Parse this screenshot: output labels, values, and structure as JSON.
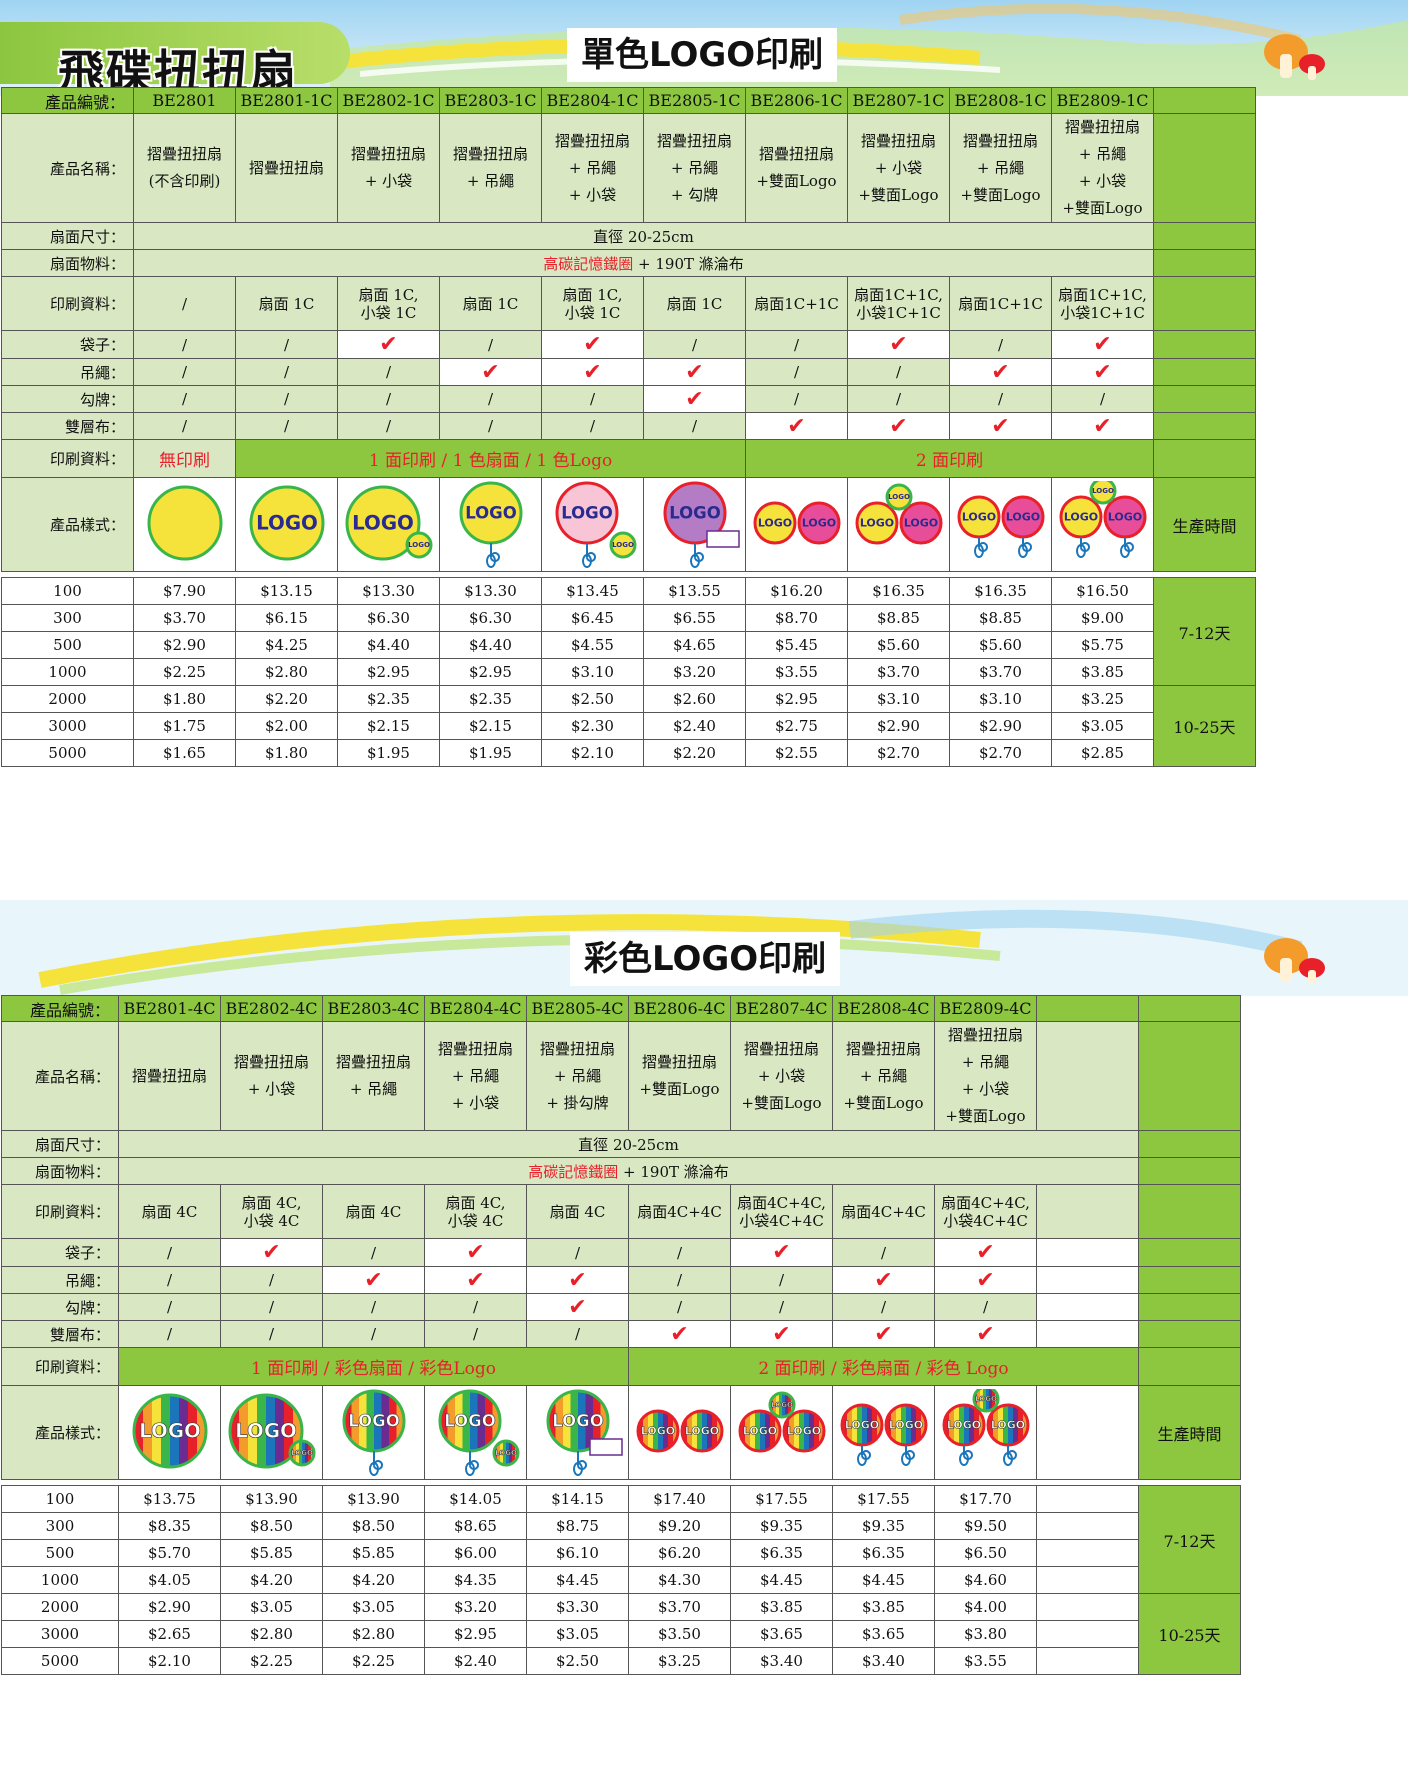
{
  "brand_title": "飛碟扭扭扇",
  "sections": [
    {
      "title": "單色LOGO印刷",
      "col_widths": [
        132,
        102,
        102,
        102,
        102,
        102,
        102,
        102,
        102,
        102,
        102,
        102
      ],
      "row_heights": [
        26,
        108,
        27,
        27,
        54,
        28,
        27,
        27,
        27,
        38,
        94,
        6,
        27,
        27,
        27,
        27,
        27,
        27,
        27
      ],
      "rows": {
        "code": {
          "label": "產品編號：",
          "cells": [
            "BE2801",
            "BE2801-1C",
            "BE2802-1C",
            "BE2803-1C",
            "BE2804-1C",
            "BE2805-1C",
            "BE2806-1C",
            "BE2807-1C",
            "BE2808-1C",
            "BE2809-1C"
          ]
        },
        "name": {
          "label": "產品名稱：",
          "cells": [
            [
              "摺疊扭扭扇",
              "(不含印刷)"
            ],
            [
              "摺疊扭扭扇"
            ],
            [
              "摺疊扭扭扇",
              "+ 小袋"
            ],
            [
              "摺疊扭扭扇",
              "+ 吊繩"
            ],
            [
              "摺疊扭扭扇",
              "+ 吊繩",
              "+ 小袋"
            ],
            [
              "摺疊扭扭扇",
              "+ 吊繩",
              "+ 勾牌"
            ],
            [
              "摺疊扭扭扇",
              "+雙面Logo"
            ],
            [
              "摺疊扭扭扇",
              "+ 小袋",
              "+雙面Logo"
            ],
            [
              "摺疊扭扭扇",
              "+ 吊繩",
              "+雙面Logo"
            ],
            [
              "摺疊扭扭扇",
              "+ 吊繩",
              "+ 小袋",
              "+雙面Logo"
            ]
          ]
        },
        "size": {
          "label": "扇面尺寸：",
          "value": "直徑 20-25cm"
        },
        "material": {
          "label": "扇面物料：",
          "red": "高碳記憶鐵圈",
          "rest": " + 190T 滌淪布"
        },
        "print": {
          "label": "印刷資料：",
          "cells": [
            [
              "/"
            ],
            [
              "扇面 1C"
            ],
            [
              "扇面 1C,",
              "小袋 1C"
            ],
            [
              "扇面 1C"
            ],
            [
              "扇面 1C,",
              "小袋 1C"
            ],
            [
              "扇面 1C"
            ],
            [
              "扇面1C+1C"
            ],
            [
              "扇面1C+1C,",
              "小袋1C+1C"
            ],
            [
              "扇面1C+1C"
            ],
            [
              "扇面1C+1C,",
              "小袋1C+1C"
            ]
          ]
        },
        "features": [
          {
            "label": "袋子：",
            "cells": [
              0,
              0,
              1,
              0,
              1,
              0,
              0,
              1,
              0,
              1
            ]
          },
          {
            "label": "吊繩：",
            "cells": [
              0,
              0,
              0,
              1,
              1,
              1,
              0,
              0,
              1,
              1
            ]
          },
          {
            "label": "勾牌：",
            "cells": [
              0,
              0,
              0,
              0,
              0,
              1,
              0,
              0,
              0,
              0
            ]
          },
          {
            "label": "雙層布：",
            "cells": [
              0,
              0,
              0,
              0,
              0,
              0,
              1,
              1,
              1,
              1
            ]
          }
        ],
        "print_type": {
          "label": "印刷資料：",
          "groups": [
            {
              "text": "無印刷",
              "span": 1,
              "style": "g"
            },
            {
              "text": "1 面印刷 / 1 色扇面 / 1 色Logo",
              "span": 5,
              "style": "g2"
            },
            {
              "text": "2 面印刷",
              "span": 4,
              "style": "g2"
            }
          ]
        },
        "style": {
          "label": "產品樣式：",
          "extra": "生產時間"
        },
        "prices": [
          {
            "qty": "100",
            "cells": [
              "$7.90",
              "$13.15",
              "$13.30",
              "$13.30",
              "$13.45",
              "$13.55",
              "$16.20",
              "$16.35",
              "$16.35",
              "$16.50"
            ]
          },
          {
            "qty": "300",
            "cells": [
              "$3.70",
              "$6.15",
              "$6.30",
              "$6.30",
              "$6.45",
              "$6.55",
              "$8.70",
              "$8.85",
              "$8.85",
              "$9.00"
            ]
          },
          {
            "qty": "500",
            "cells": [
              "$2.90",
              "$4.25",
              "$4.40",
              "$4.40",
              "$4.55",
              "$4.65",
              "$5.45",
              "$5.60",
              "$5.60",
              "$5.75"
            ]
          },
          {
            "qty": "1000",
            "cells": [
              "$2.25",
              "$2.80",
              "$2.95",
              "$2.95",
              "$3.10",
              "$3.20",
              "$3.55",
              "$3.70",
              "$3.70",
              "$3.85"
            ]
          },
          {
            "qty": "2000",
            "cells": [
              "$1.80",
              "$2.20",
              "$2.35",
              "$2.35",
              "$2.50",
              "$2.60",
              "$2.95",
              "$3.10",
              "$3.10",
              "$3.25"
            ]
          },
          {
            "qty": "3000",
            "cells": [
              "$1.75",
              "$2.00",
              "$2.15",
              "$2.15",
              "$2.30",
              "$2.40",
              "$2.75",
              "$2.90",
              "$2.90",
              "$3.05"
            ]
          },
          {
            "qty": "5000",
            "cells": [
              "$1.65",
              "$1.80",
              "$1.95",
              "$1.95",
              "$2.10",
              "$2.20",
              "$2.55",
              "$2.70",
              "$2.70",
              "$2.85"
            ]
          }
        ],
        "lead_times": [
          "7-12天",
          "10-25天"
        ]
      },
      "images": [
        "yellow-plain",
        "yellow-logo",
        "yellow-logo-bag",
        "yellow-logo-strap",
        "pink-logo-strap-bag",
        "purple-logo-strap-tag",
        "two-logo",
        "two-logo-bag",
        "two-logo-strap",
        "two-logo-strap-bag"
      ]
    },
    {
      "title": "彩色LOGO印刷",
      "col_widths": [
        117,
        102,
        102,
        102,
        102,
        102,
        102,
        102,
        102,
        102,
        102,
        102
      ],
      "row_heights": [
        26,
        108,
        27,
        27,
        54,
        28,
        27,
        27,
        27,
        38,
        94,
        6,
        27,
        27,
        27,
        27,
        27,
        27,
        27
      ],
      "rows": {
        "code": {
          "label": "產品編號：",
          "cells": [
            "BE2801-4C",
            "BE2802-4C",
            "BE2803-4C",
            "BE2804-4C",
            "BE2805-4C",
            "BE2806-4C",
            "BE2807-4C",
            "BE2808-4C",
            "BE2809-4C",
            ""
          ]
        },
        "name": {
          "label": "產品名稱：",
          "cells": [
            [
              "摺疊扭扭扇"
            ],
            [
              "摺疊扭扭扇",
              "+ 小袋"
            ],
            [
              "摺疊扭扭扇",
              "+ 吊繩"
            ],
            [
              "摺疊扭扭扇",
              "+ 吊繩",
              "+ 小袋"
            ],
            [
              "摺疊扭扭扇",
              "+ 吊繩",
              "+ 掛勾牌"
            ],
            [
              "摺疊扭扭扇",
              "+雙面Logo"
            ],
            [
              "摺疊扭扭扇",
              "+ 小袋",
              "+雙面Logo"
            ],
            [
              "摺疊扭扭扇",
              "+ 吊繩",
              "+雙面Logo"
            ],
            [
              "摺疊扭扭扇",
              "+ 吊繩",
              "+ 小袋",
              "+雙面Logo"
            ],
            []
          ]
        },
        "size": {
          "label": "扇面尺寸：",
          "value": "直徑 20-25cm"
        },
        "material": {
          "label": "扇面物料：",
          "red": "高碳記憶鐵圈",
          "rest": " + 190T 滌淪布"
        },
        "print": {
          "label": "印刷資料：",
          "cells": [
            [
              "扇面 4C"
            ],
            [
              "扇面 4C,",
              "小袋 4C"
            ],
            [
              "扇面 4C"
            ],
            [
              "扇面 4C,",
              "小袋 4C"
            ],
            [
              "扇面 4C"
            ],
            [
              "扇面4C+4C"
            ],
            [
              "扇面4C+4C,",
              "小袋4C+4C"
            ],
            [
              "扇面4C+4C"
            ],
            [
              "扇面4C+4C,",
              "小袋4C+4C"
            ],
            []
          ]
        },
        "features": [
          {
            "label": "袋子：",
            "cells": [
              0,
              1,
              0,
              1,
              0,
              0,
              1,
              0,
              1,
              -1
            ]
          },
          {
            "label": "吊繩：",
            "cells": [
              0,
              0,
              1,
              1,
              1,
              0,
              0,
              1,
              1,
              -1
            ]
          },
          {
            "label": "勾牌：",
            "cells": [
              0,
              0,
              0,
              0,
              1,
              0,
              0,
              0,
              0,
              -1
            ]
          },
          {
            "label": "雙層布：",
            "cells": [
              0,
              0,
              0,
              0,
              0,
              1,
              1,
              1,
              1,
              -1
            ]
          }
        ],
        "print_type": {
          "label": "印刷資料：",
          "groups": [
            {
              "text": "1 面印刷 / 彩色扇面 / 彩色Logo",
              "span": 5,
              "style": "g2"
            },
            {
              "text": "2 面印刷 / 彩色扇面 / 彩色 Logo",
              "span": 5,
              "style": "g2"
            }
          ]
        },
        "style": {
          "label": "產品樣式：",
          "extra": "生產時間"
        },
        "prices": [
          {
            "qty": "100",
            "cells": [
              "$13.75",
              "$13.90",
              "$13.90",
              "$14.05",
              "$14.15",
              "$17.40",
              "$17.55",
              "$17.55",
              "$17.70",
              ""
            ]
          },
          {
            "qty": "300",
            "cells": [
              "$8.35",
              "$8.50",
              "$8.50",
              "$8.65",
              "$8.75",
              "$9.20",
              "$9.35",
              "$9.35",
              "$9.50",
              ""
            ]
          },
          {
            "qty": "500",
            "cells": [
              "$5.70",
              "$5.85",
              "$5.85",
              "$6.00",
              "$6.10",
              "$6.20",
              "$6.35",
              "$6.35",
              "$6.50",
              ""
            ]
          },
          {
            "qty": "1000",
            "cells": [
              "$4.05",
              "$4.20",
              "$4.20",
              "$4.35",
              "$4.45",
              "$4.30",
              "$4.45",
              "$4.45",
              "$4.60",
              ""
            ]
          },
          {
            "qty": "2000",
            "cells": [
              "$2.90",
              "$3.05",
              "$3.05",
              "$3.20",
              "$3.30",
              "$3.70",
              "$3.85",
              "$3.85",
              "$4.00",
              ""
            ]
          },
          {
            "qty": "3000",
            "cells": [
              "$2.65",
              "$2.80",
              "$2.80",
              "$2.95",
              "$3.05",
              "$3.50",
              "$3.65",
              "$3.65",
              "$3.80",
              ""
            ]
          },
          {
            "qty": "5000",
            "cells": [
              "$2.10",
              "$2.25",
              "$2.25",
              "$2.40",
              "$2.50",
              "$3.25",
              "$3.40",
              "$3.40",
              "$3.55",
              ""
            ]
          }
        ],
        "lead_times": [
          "7-12天",
          "10-25天"
        ]
      },
      "images": [
        "rainbow-logo",
        "rainbow-logo-bag",
        "rainbow-logo-strap",
        "rainbow-logo-strap-bag",
        "rainbow-logo-strap-tag",
        "rainbow-two-logo",
        "rainbow-two-logo-bag",
        "rainbow-two-logo-strap",
        "rainbow-two-logo-strap-bag",
        "none"
      ]
    }
  ],
  "icon_names": {
    "check": "check-mark-icon",
    "slash": "not-included-mark",
    "mushroom": "mushroom-icon"
  },
  "logo_text": "LOGO",
  "colors": {
    "green_header": "#8dc63f",
    "green_light": "#d9e8c3",
    "accent_red": "#e8202a",
    "check": "#e8202a"
  }
}
